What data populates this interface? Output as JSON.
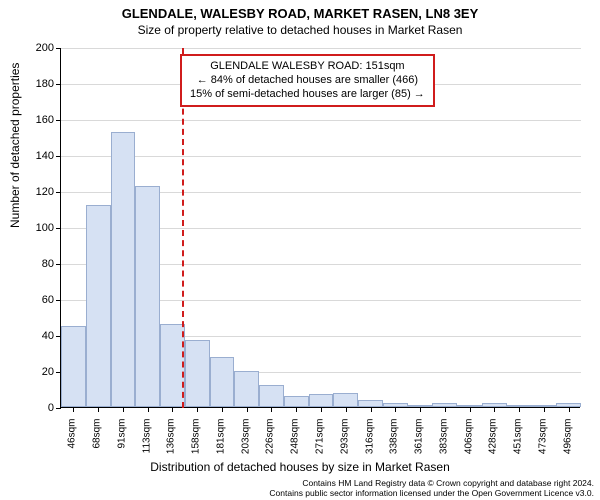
{
  "title_main": "GLENDALE, WALESBY ROAD, MARKET RASEN, LN8 3EY",
  "title_sub": "Size of property relative to detached houses in Market Rasen",
  "yaxis_label": "Number of detached properties",
  "xaxis_label": "Distribution of detached houses by size in Market Rasen",
  "annotation": {
    "line1": "GLENDALE WALESBY ROAD: 151sqm",
    "line2": "← 84% of detached houses are smaller (466)",
    "line3": "15% of semi-detached houses are larger (85) →"
  },
  "footer": {
    "line1": "Contains HM Land Registry data © Crown copyright and database right 2024.",
    "line2": "Contains public sector information licensed under the Open Government Licence v3.0."
  },
  "chart": {
    "type": "histogram",
    "ylim": [
      0,
      200
    ],
    "ytick_step": 20,
    "marker_value_sqm": 151,
    "bar_fill": "#d6e1f3",
    "bar_border": "#9aaed0",
    "grid_color": "#d9d9d9",
    "marker_color": "#d01c1c",
    "background": "#ffffff",
    "title_fontsize": 13,
    "label_fontsize": 12,
    "tick_fontsize": 11,
    "x_categories": [
      "46sqm",
      "68sqm",
      "91sqm",
      "113sqm",
      "136sqm",
      "158sqm",
      "181sqm",
      "203sqm",
      "226sqm",
      "248sqm",
      "271sqm",
      "293sqm",
      "316sqm",
      "338sqm",
      "361sqm",
      "383sqm",
      "406sqm",
      "428sqm",
      "451sqm",
      "473sqm",
      "496sqm"
    ],
    "x_numeric": [
      46,
      68,
      91,
      113,
      136,
      158,
      181,
      203,
      226,
      248,
      271,
      293,
      316,
      338,
      361,
      383,
      406,
      428,
      451,
      473,
      496
    ],
    "values": [
      45,
      112,
      153,
      123,
      46,
      37,
      28,
      20,
      12,
      6,
      7,
      8,
      4,
      2,
      0,
      2,
      0,
      2,
      0,
      0,
      2
    ]
  }
}
